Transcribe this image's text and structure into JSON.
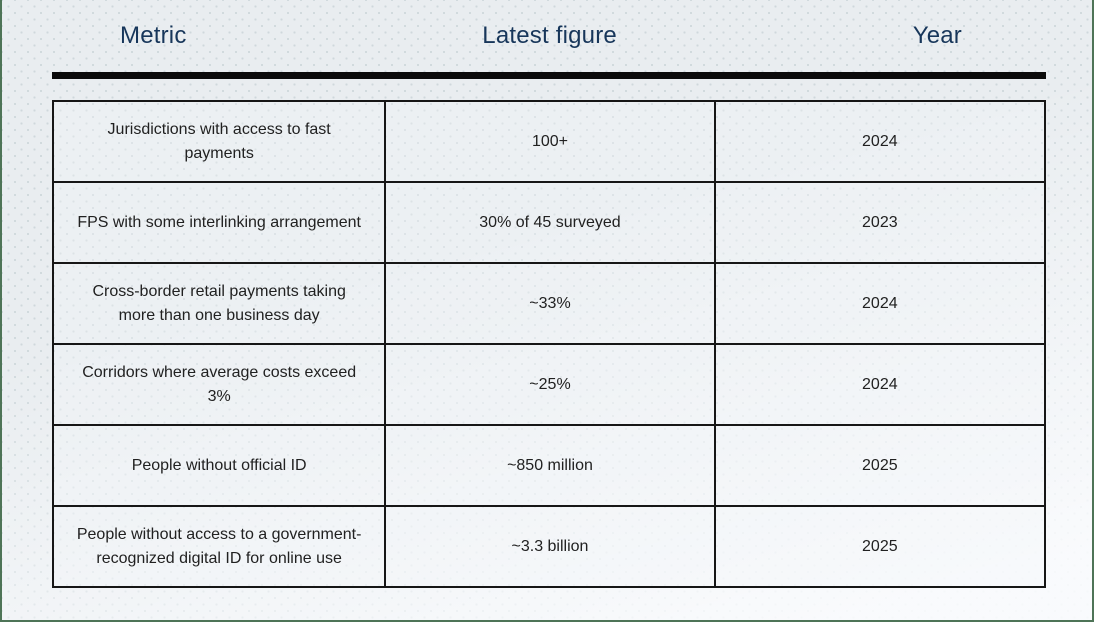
{
  "header": {
    "columns": [
      "Metric",
      "Latest figure",
      "Year"
    ]
  },
  "table": {
    "rows": [
      {
        "metric": "Jurisdictions with access to fast payments",
        "figure": "100+",
        "year": "2024"
      },
      {
        "metric": "FPS with some interlinking arrangement",
        "figure": "30% of 45 surveyed",
        "year": "2023"
      },
      {
        "metric": "Cross-border retail payments taking more than one business day",
        "figure": "~33%",
        "year": "2024"
      },
      {
        "metric": "Corridors where average costs exceed 3%",
        "figure": "~25%",
        "year": "2024"
      },
      {
        "metric": "People without official ID",
        "figure": "~850 million",
        "year": "2025"
      },
      {
        "metric": "People without access to a government-recognized digital ID for online use",
        "figure": "~3.3 billion",
        "year": "2025"
      }
    ]
  },
  "colors": {
    "header_text": "#17365a",
    "frame_border_green": "#4e7457",
    "rule_black": "#0a0a0a",
    "cell_border": "#161616",
    "page_background": "#e9edf0",
    "cell_text": "#212121"
  }
}
